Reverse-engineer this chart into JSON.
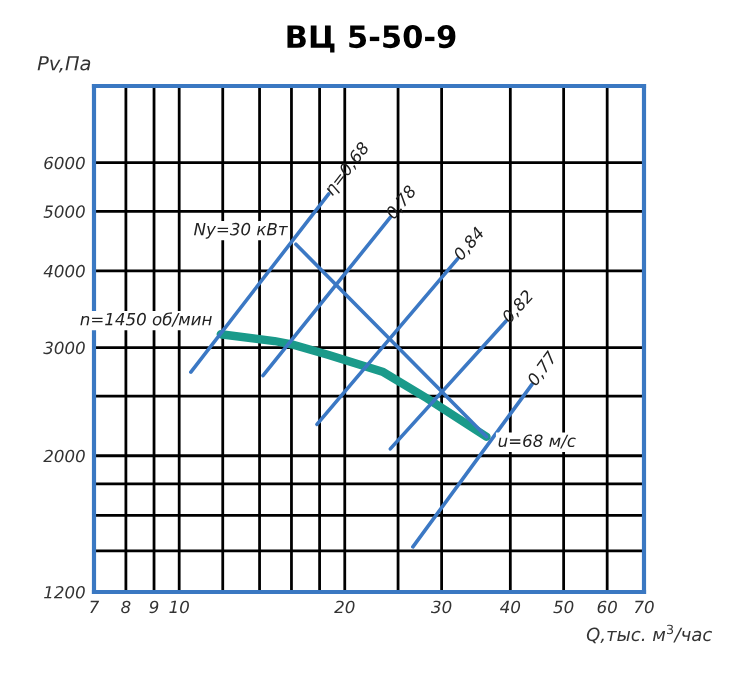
{
  "chart_data": {
    "type": "line",
    "title": "ВЦ 5-50-9",
    "xlabel": "Q,тыс. м$^{3}$/час",
    "ylabel": "Pv,Па",
    "log": "xy",
    "xlim": [
      7,
      70
    ],
    "ylim": [
      1200,
      8000
    ],
    "xticks": [
      7,
      8,
      9,
      10,
      {
        "value": 12,
        "label": null
      },
      {
        "value": 14,
        "label": null
      },
      {
        "value": 16,
        "label": null
      },
      {
        "value": 18,
        "label": null
      },
      20,
      {
        "value": 25,
        "label": null
      },
      30,
      40,
      50,
      60,
      70
    ],
    "yticks": [
      1200,
      {
        "value": 1400,
        "label": null
      },
      {
        "value": 1600,
        "label": null
      },
      {
        "value": 1800,
        "label": null
      },
      2000,
      {
        "value": 2500,
        "label": null
      },
      3000,
      4000,
      5000,
      6000
    ],
    "grid": true,
    "marker": "none",
    "line_style": "solid",
    "series": [
      {
        "name": "n=1450 об/мин",
        "color": "#1a9a8a",
        "x": [
          11.9,
          14.9,
          16.0,
          18.7,
          23.5,
          28.2,
          36.2
        ],
        "values": [
          3154,
          3075,
          3037,
          2918,
          2737,
          2481,
          2148
        ]
      },
      {
        "name": "η=0,68",
        "color": "#3b78c4",
        "x": [
          10.5,
          18.7
        ],
        "values": [
          2737,
          5340
        ]
      },
      {
        "name": "0,78",
        "color": "#3b78c4",
        "x": [
          14.2,
          24.2
        ],
        "values": [
          2702,
          4888
        ]
      },
      {
        "name": "0,84",
        "color": "#3b78c4",
        "x": [
          17.8,
          32.1
        ],
        "values": [
          2250,
          4188
        ]
      },
      {
        "name": "0,82",
        "color": "#3b78c4",
        "x": [
          24.2,
          39.3
        ],
        "values": [
          2052,
          3315
        ]
      },
      {
        "name": "0,77",
        "color": "#3b78c4",
        "x": [
          26.6,
          43.8
        ],
        "values": [
          1421,
          2614
        ]
      },
      {
        "name": "Nу=30 кВт",
        "color": "#3b78c4",
        "x": [
          16.3,
          36.2
        ],
        "values": [
          4420,
          2148
        ]
      }
    ],
    "annotations": [
      {
        "text": "u=68 м/с",
        "x": 36.2,
        "y": 2148
      }
    ]
  }
}
